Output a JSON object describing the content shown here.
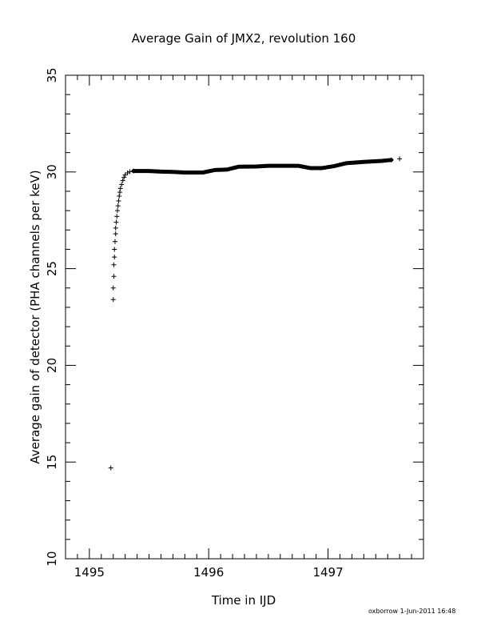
{
  "footer": "oxborrow   1-Jun-2011 16:48",
  "chart_data": {
    "type": "scatter",
    "title": "Average Gain of JMX2, revolution 160",
    "xlabel": "Time in IJD",
    "ylabel": "Average gain of detector (PHA channels per keV)",
    "xlim": [
      1494.8,
      1497.8
    ],
    "ylim": [
      10,
      35
    ],
    "xticks": [
      1495,
      1496,
      1497
    ],
    "yticks": [
      10,
      15,
      20,
      25,
      30,
      35
    ],
    "marker": "plus",
    "grid": false,
    "color": "#000000",
    "points": [
      [
        1495.18,
        14.7
      ],
      [
        1495.2,
        23.4
      ],
      [
        1495.2,
        24.0
      ],
      [
        1495.205,
        24.6
      ],
      [
        1495.205,
        25.2
      ],
      [
        1495.21,
        25.6
      ],
      [
        1495.21,
        26.0
      ],
      [
        1495.215,
        26.4
      ],
      [
        1495.22,
        26.8
      ],
      [
        1495.22,
        27.1
      ],
      [
        1495.225,
        27.4
      ],
      [
        1495.23,
        27.7
      ],
      [
        1495.235,
        28.0
      ],
      [
        1495.24,
        28.25
      ],
      [
        1495.245,
        28.5
      ],
      [
        1495.25,
        28.75
      ],
      [
        1495.255,
        28.95
      ],
      [
        1495.26,
        29.15
      ],
      [
        1495.27,
        29.35
      ],
      [
        1495.28,
        29.55
      ],
      [
        1495.29,
        29.72
      ],
      [
        1495.3,
        29.85
      ],
      [
        1495.32,
        29.95
      ],
      [
        1495.34,
        30.02
      ],
      [
        1495.37,
        30.05
      ]
    ],
    "curve": [
      [
        1495.37,
        30.05
      ],
      [
        1495.5,
        30.05
      ],
      [
        1495.6,
        30.02
      ],
      [
        1495.7,
        30.0
      ],
      [
        1495.8,
        29.97
      ],
      [
        1495.95,
        29.97
      ],
      [
        1496.05,
        30.1
      ],
      [
        1496.15,
        30.12
      ],
      [
        1496.25,
        30.27
      ],
      [
        1496.4,
        30.28
      ],
      [
        1496.5,
        30.32
      ],
      [
        1496.6,
        30.32
      ],
      [
        1496.75,
        30.32
      ],
      [
        1496.85,
        30.2
      ],
      [
        1496.95,
        30.2
      ],
      [
        1497.05,
        30.3
      ],
      [
        1497.15,
        30.45
      ],
      [
        1497.3,
        30.52
      ],
      [
        1497.45,
        30.57
      ],
      [
        1497.53,
        30.62
      ]
    ],
    "tail_points": [
      [
        1497.53,
        30.62
      ],
      [
        1497.6,
        30.68
      ]
    ]
  }
}
